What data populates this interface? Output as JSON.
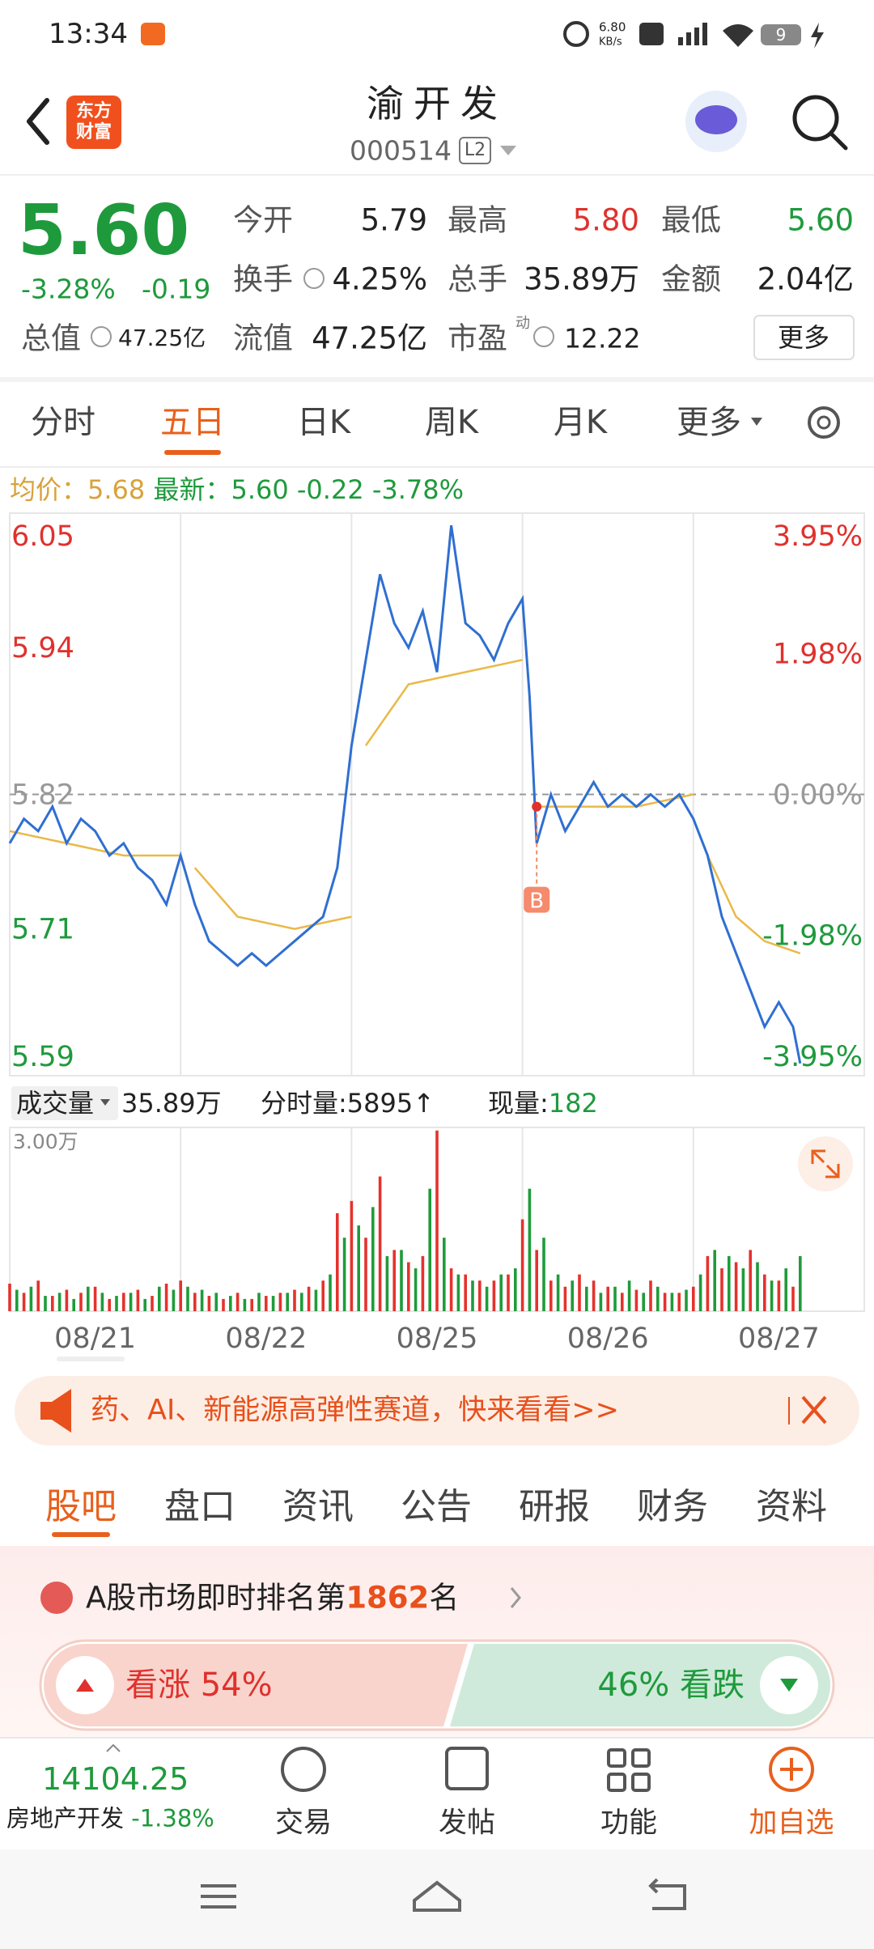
{
  "status": {
    "time": "13:34",
    "speed": "6.80",
    "speed_unit": "KB/s",
    "battery": "9"
  },
  "header": {
    "logo_top": "东方",
    "logo_bottom": "财富",
    "title": "渝开发",
    "code": "000514",
    "level": "L2"
  },
  "quote": {
    "price": "5.60",
    "change_pct": "-3.28%",
    "change": "-0.19",
    "stats": [
      {
        "label": "今开",
        "value": "5.79"
      },
      {
        "label": "最高",
        "value": "5.80"
      },
      {
        "label": "最低",
        "value": "5.60"
      },
      {
        "label": "换手",
        "value": "4.25%"
      },
      {
        "label": "总手",
        "value": "35.89万"
      },
      {
        "label": "金额",
        "value": "2.04亿"
      },
      {
        "label": "总值",
        "value": "47.25亿"
      },
      {
        "label": "流值",
        "value": "47.25亿"
      },
      {
        "label": "市盈",
        "value": "12.22"
      }
    ],
    "pe_mark": "动",
    "more": "更多"
  },
  "tabs": [
    "分时",
    "五日",
    "日K",
    "周K",
    "月K",
    "更多"
  ],
  "info": {
    "avg_label": "均价：",
    "avg": "5.68",
    "last_label": "最新：",
    "last": "5.60",
    "change": "-0.22",
    "change_pct": "-3.78%"
  },
  "volume_info": {
    "label": "成交量",
    "total": "35.89万",
    "minute": "分时量:5895↑",
    "now_label": "现量:",
    "now": "182"
  },
  "banner": "药、AI、新能源高弹性赛道，快来看看>>",
  "sections": [
    "股吧",
    "盘口",
    "资讯",
    "公告",
    "研报",
    "财务",
    "资料"
  ],
  "rank": {
    "prefix": "A股市场即时排名第",
    "number": "1862",
    "suffix": "名"
  },
  "vote": {
    "up_label": "看涨",
    "up": "54%",
    "down": "46%",
    "down_label": "看跌"
  },
  "bottom": {
    "index": "14104.25",
    "sector": "房地产开发",
    "sector_change": "-1.38%",
    "actions": [
      "交易",
      "发帖",
      "功能",
      "加自选"
    ]
  },
  "chart_data": [
    {
      "type": "line",
      "xlim": [
        0,
        120
      ],
      "ylim": [
        5.59,
        6.05
      ],
      "yticks": [
        6.05,
        5.94,
        5.82,
        5.71,
        5.59
      ],
      "y2lim": [
        -3.95,
        3.95
      ],
      "y2ticks": [
        {
          "value": 3.95,
          "label": "3.95%"
        },
        {
          "value": 1.98,
          "label": "1.98%"
        },
        {
          "value": 0,
          "label": "0.00%"
        },
        {
          "value": -1.98,
          "label": "-1.98%"
        },
        {
          "value": -3.95,
          "label": "-3.95%"
        }
      ],
      "series": [
        {
          "color": "#2f6fd1",
          "x": [
            0,
            2,
            4,
            6,
            8,
            10,
            12,
            14,
            16,
            18,
            20,
            22,
            24,
            26,
            28,
            30,
            32,
            34,
            36,
            38,
            40,
            42,
            44,
            46,
            48,
            50,
            52,
            54,
            56,
            58,
            60,
            62,
            64,
            66,
            68,
            70,
            72,
            73,
            74,
            76,
            78,
            80,
            82,
            84,
            86,
            88,
            90,
            92,
            94,
            96,
            98,
            100,
            102,
            104,
            106,
            108,
            110,
            111
          ],
          "values": [
            5.78,
            5.8,
            5.79,
            5.81,
            5.78,
            5.8,
            5.79,
            5.77,
            5.78,
            5.76,
            5.75,
            5.73,
            5.77,
            5.73,
            5.7,
            5.69,
            5.68,
            5.69,
            5.68,
            5.69,
            5.7,
            5.71,
            5.72,
            5.76,
            5.86,
            5.93,
            6.0,
            5.96,
            5.94,
            5.97,
            5.92,
            6.04,
            5.96,
            5.95,
            5.93,
            5.96,
            5.98,
            5.9,
            5.78,
            5.82,
            5.79,
            5.81,
            5.83,
            5.81,
            5.82,
            5.81,
            5.82,
            5.81,
            5.82,
            5.8,
            5.77,
            5.72,
            5.69,
            5.66,
            5.63,
            5.65,
            5.63,
            5.6
          ]
        },
        {
          "color": "#e9b949",
          "x": [
            0,
            8,
            16,
            24,
            25,
            26,
            32,
            40,
            48,
            49,
            50,
            56,
            64,
            72,
            73,
            74,
            80,
            88,
            96,
            97,
            98,
            102,
            106,
            111
          ],
          "values": [
            5.79,
            5.78,
            5.77,
            5.77,
            null,
            5.76,
            5.72,
            5.71,
            5.72,
            null,
            5.86,
            5.91,
            5.92,
            5.93,
            null,
            5.81,
            5.81,
            5.81,
            5.82,
            null,
            5.77,
            5.72,
            5.7,
            5.69
          ]
        }
      ],
      "annotations": [
        {
          "text": "B",
          "x": 74,
          "value": 5.81
        }
      ]
    },
    {
      "type": "bar",
      "xlim": [
        0,
        120
      ],
      "ylim": [
        0,
        3
      ],
      "yticks": [
        {
          "value": 3,
          "label": "3.00万"
        }
      ],
      "xticks": [
        {
          "value": 12,
          "label": "08/21"
        },
        {
          "value": 36,
          "label": "08/22"
        },
        {
          "value": 60,
          "label": "08/25"
        },
        {
          "value": 84,
          "label": "08/26"
        },
        {
          "value": 108,
          "label": "08/27"
        }
      ],
      "series": [
        {
          "color": "#e5322d",
          "x": [
            0,
            2,
            4,
            6,
            8,
            10,
            12,
            14,
            16,
            18,
            20,
            22,
            24,
            26,
            28,
            30,
            32,
            34,
            36,
            38,
            40,
            42,
            44,
            46,
            48,
            50,
            52,
            54,
            56,
            58,
            60,
            62,
            64,
            66,
            68,
            70,
            72,
            74,
            76,
            78,
            80,
            82,
            84,
            86,
            88,
            90,
            92,
            94,
            96,
            98,
            100,
            102,
            104,
            106,
            108,
            110
          ],
          "values": [
            0.45,
            0.3,
            0.5,
            0.25,
            0.35,
            0.3,
            0.4,
            0.2,
            0.3,
            0.35,
            0.25,
            0.45,
            0.5,
            0.3,
            0.25,
            0.2,
            0.3,
            0.2,
            0.25,
            0.3,
            0.35,
            0.4,
            0.5,
            1.6,
            1.8,
            1.2,
            2.2,
            1.0,
            0.8,
            0.9,
            2.95,
            0.7,
            0.6,
            0.5,
            0.5,
            0.6,
            1.5,
            1.0,
            0.5,
            0.4,
            0.6,
            0.5,
            0.4,
            0.3,
            0.35,
            0.5,
            0.3,
            0.3,
            0.4,
            0.9,
            0.7,
            0.8,
            1.0,
            0.6,
            0.5,
            0.4
          ]
        },
        {
          "color": "#1f9b3a",
          "x": [
            1,
            3,
            5,
            7,
            9,
            11,
            13,
            15,
            17,
            19,
            21,
            23,
            25,
            27,
            29,
            31,
            33,
            35,
            37,
            39,
            41,
            43,
            45,
            47,
            49,
            51,
            53,
            55,
            57,
            59,
            61,
            63,
            65,
            67,
            69,
            71,
            73,
            75,
            77,
            79,
            81,
            83,
            85,
            87,
            89,
            91,
            93,
            95,
            97,
            99,
            101,
            103,
            105,
            107,
            109,
            111
          ],
          "values": [
            0.35,
            0.4,
            0.25,
            0.3,
            0.2,
            0.4,
            0.3,
            0.25,
            0.3,
            0.2,
            0.4,
            0.35,
            0.4,
            0.35,
            0.3,
            0.25,
            0.2,
            0.3,
            0.25,
            0.3,
            0.3,
            0.35,
            0.6,
            1.2,
            1.4,
            1.7,
            0.9,
            1.0,
            0.7,
            2.0,
            1.2,
            0.6,
            0.5,
            0.4,
            0.6,
            0.7,
            2.0,
            1.2,
            0.6,
            0.5,
            0.4,
            0.3,
            0.4,
            0.5,
            0.3,
            0.4,
            0.3,
            0.35,
            0.6,
            1.0,
            0.9,
            0.7,
            0.8,
            0.5,
            0.7,
            0.9
          ]
        }
      ]
    }
  ]
}
